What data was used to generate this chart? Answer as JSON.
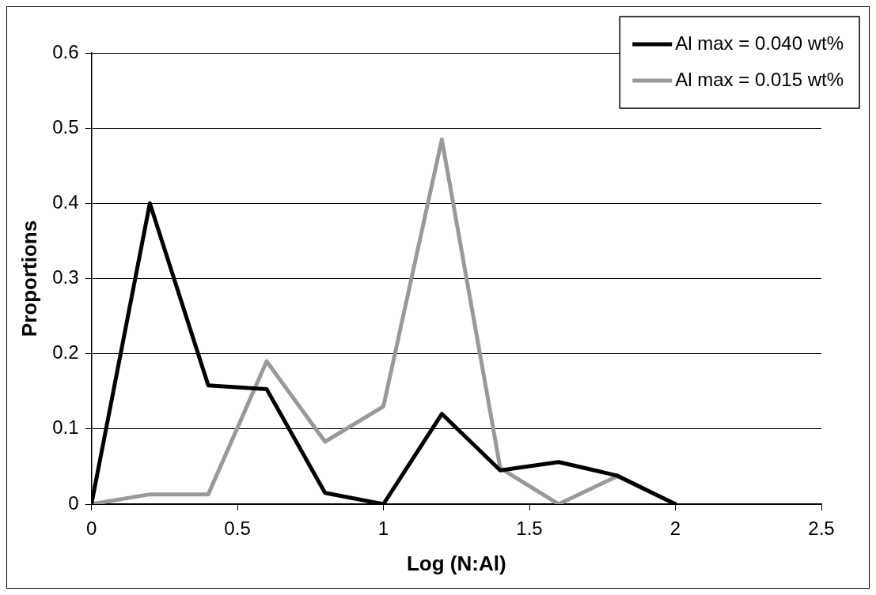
{
  "chart_data": {
    "type": "line",
    "xlabel": "Log (N:Al)",
    "ylabel": "Proportions",
    "x": [
      0,
      0.2,
      0.4,
      0.6,
      0.8,
      1,
      1.2,
      1.4,
      1.6,
      1.8,
      2
    ],
    "series": [
      {
        "name": "Al max = 0.040 wt%",
        "color": "#000000",
        "values": [
          0,
          0.4,
          0.158,
          0.153,
          0.015,
          0,
          0.12,
          0.045,
          0.056,
          0.038,
          0
        ]
      },
      {
        "name": "Al max = 0.015 wt%",
        "color": "#999999",
        "values": [
          0,
          0.013,
          0.013,
          0.19,
          0.083,
          0.13,
          0.485,
          0.048,
          0,
          0.037,
          0
        ]
      }
    ],
    "xlim": [
      0,
      2.5
    ],
    "xticks": [
      0,
      0.5,
      1,
      1.5,
      2,
      2.5
    ],
    "ylim": [
      0,
      0.6
    ],
    "yticks": [
      0,
      0.1,
      0.2,
      0.3,
      0.4,
      0.5,
      0.6
    ],
    "grid": "y",
    "legend": "top right",
    "marker": "none",
    "line_style": "solid"
  }
}
